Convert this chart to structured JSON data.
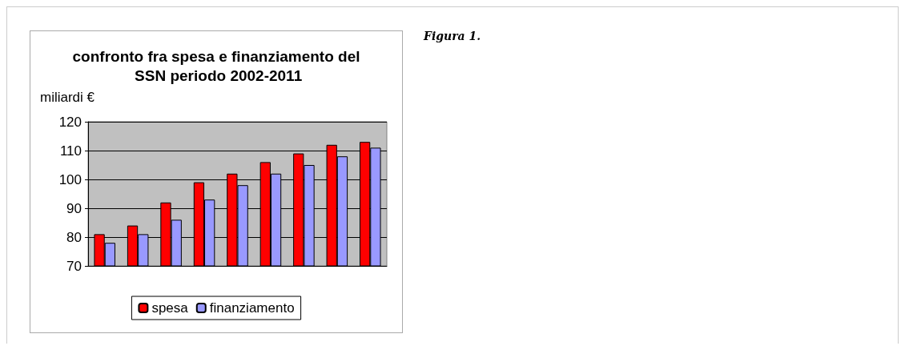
{
  "chart_data": {
    "type": "bar",
    "title": "confronto fra spesa e finanziamento del SSN periodo 2002-2011",
    "ylabel": "miliardi €",
    "annotations": [
      "Figura 1."
    ],
    "categories": [
      null,
      null,
      null,
      null,
      null,
      null,
      null,
      null,
      null
    ],
    "series": [
      {
        "name": "spesa",
        "color": "#ff0000",
        "values": [
          81,
          84,
          92,
          99,
          102,
          106,
          109,
          112,
          113
        ]
      },
      {
        "name": "finanziamento",
        "color": "#9999ff",
        "values": [
          78,
          81,
          86,
          93,
          98,
          102,
          105,
          108,
          111
        ]
      }
    ],
    "ylim": [
      70,
      120
    ],
    "yticks": [
      70,
      80,
      90,
      100,
      110,
      120
    ],
    "grid": "y",
    "legend": "bottom"
  }
}
